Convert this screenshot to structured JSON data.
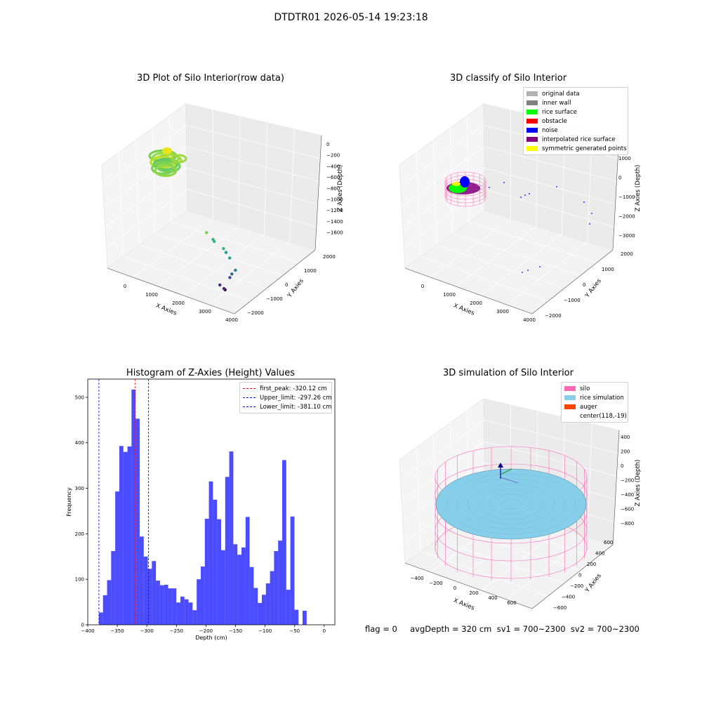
{
  "suptitle": "DTDTR01 2026-05-14 19:23:18",
  "footer": "flag = 0     avgDepth = 320 cm  sv1 = 700~2300  sv2 = 700~2300",
  "chart_data": [
    {
      "type": "scatter",
      "panel": "top-left",
      "title": "3D Plot of Silo Interior(row data)",
      "xlabel": "X Axies",
      "ylabel": "Y Axies",
      "zlabel": "Z Axies (Depth)",
      "x_ticks": [
        "0",
        "1000",
        "2000",
        "3000",
        "4000"
      ],
      "y_ticks": [
        "−2000",
        "−1000",
        "0",
        "1000",
        "2000"
      ],
      "z_ticks": [
        "0",
        "−200",
        "−400",
        "−600",
        "−800",
        "−1000",
        "−1200",
        "−1400",
        "−1600"
      ],
      "colormap": "viridis",
      "points": [
        {
          "x": 4000,
          "y": -2200,
          "z": -1650
        },
        {
          "x": 3700,
          "y": -2000,
          "z": -1600
        },
        {
          "x": 3900,
          "y": -2100,
          "z": -1550
        },
        {
          "x": 3600,
          "y": -1200,
          "z": -1300
        },
        {
          "x": 3500,
          "y": -900,
          "z": -1200
        },
        {
          "x": 3400,
          "y": -500,
          "z": -1000
        },
        {
          "x": 2800,
          "y": 200,
          "z": -800
        },
        {
          "x": 2500,
          "y": 500,
          "z": -700
        },
        {
          "x": 2300,
          "y": 700,
          "z": -650
        },
        {
          "x": 1800,
          "y": 1000,
          "z": -500
        },
        {
          "x": 1700,
          "y": 1100,
          "z": -480
        },
        {
          "x": 1300,
          "y": 1400,
          "z": -400
        }
      ]
    },
    {
      "type": "scatter",
      "panel": "top-right",
      "title": "3D classify of Silo Interior",
      "xlabel": "X Axies",
      "ylabel": "Y Axies",
      "zlabel": "Z Axies (Depth)",
      "x_ticks": [
        "0",
        "1000",
        "2000",
        "3000",
        "4000"
      ],
      "y_ticks": [
        "−2000",
        "−1000",
        "0",
        "1000",
        "2000"
      ],
      "z_ticks": [
        "1000",
        "0",
        "−1000",
        "−2000",
        "−3000"
      ],
      "legend": [
        {
          "label": "original data",
          "color": "#b2b2b2"
        },
        {
          "label": "inner wall",
          "color": "#808080"
        },
        {
          "label": "rice surface",
          "color": "#00ff00"
        },
        {
          "label": "obstacle",
          "color": "#ff0000"
        },
        {
          "label": "noise",
          "color": "#0000ff"
        },
        {
          "label": "interpolated rice surface",
          "color": "#800080"
        },
        {
          "label": "symmetric generated points",
          "color": "#ffff00"
        }
      ]
    },
    {
      "type": "bar",
      "panel": "bottom-left",
      "title": "Histogram of Z-Axies (Height) Values",
      "xlabel": "Depth (cm)",
      "ylabel": "Frequency",
      "xlim": [
        -400,
        18
      ],
      "ylim": [
        0,
        540
      ],
      "x_ticks": [
        -400,
        -350,
        -300,
        -250,
        -200,
        -150,
        -100,
        -50,
        0
      ],
      "y_ticks": [
        0,
        100,
        200,
        300,
        400,
        500
      ],
      "bin_start": -381.1,
      "bin_width": 6.89,
      "bar_color": "#0000ff",
      "values": [
        27,
        65,
        98,
        162,
        293,
        393,
        380,
        392,
        517,
        453,
        194,
        150,
        123,
        140,
        97,
        87,
        88,
        80,
        80,
        49,
        62,
        56,
        49,
        32,
        100,
        128,
        233,
        315,
        275,
        232,
        164,
        325,
        381,
        177,
        154,
        170,
        237,
        127,
        81,
        48,
        66,
        91,
        118,
        162,
        185,
        362,
        77,
        238,
        33,
        0,
        31
      ],
      "vlines": [
        {
          "label": "first_peak: -320.12 cm",
          "x": -320.12,
          "color": "#ff0000"
        },
        {
          "label": "Upper_limit: -297.26 cm",
          "x": -297.26,
          "color": "#0000ff"
        },
        {
          "label": "Lower_limit: -381.10 cm",
          "x": -381.1,
          "color": "#0000ff"
        }
      ]
    },
    {
      "type": "scatter",
      "panel": "bottom-right",
      "title": "3D simulation of Silo Interior",
      "xlabel": "X Axies",
      "ylabel": "Y Axies",
      "zlabel": "Z Axies (Depth)",
      "x_ticks": [
        "−400",
        "−200",
        "0",
        "200",
        "400",
        "600"
      ],
      "y_ticks": [
        "−600",
        "−400",
        "−200",
        "0",
        "200",
        "400",
        "600"
      ],
      "z_ticks": [
        "400",
        "200",
        "0",
        "−200",
        "−400",
        "−600",
        "−800"
      ],
      "legend": [
        {
          "label": "silo",
          "color": "#ff69b4"
        },
        {
          "label": "rice simulation",
          "color": "#87ceeb"
        },
        {
          "label": "auger",
          "color": "#ff4500"
        },
        {
          "label": "center(118,-19)",
          "color": ""
        }
      ]
    }
  ]
}
